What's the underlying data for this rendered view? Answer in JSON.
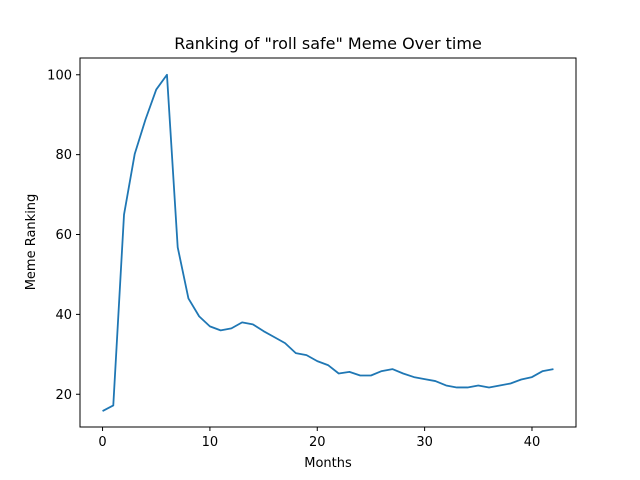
{
  "chart_data": {
    "type": "line",
    "title": "Ranking of \"roll safe\" Meme Over time",
    "xlabel": "Months",
    "ylabel": "Meme Ranking",
    "xlim": [
      -2.1,
      44.1
    ],
    "ylim": [
      11.8,
      104.2
    ],
    "xticks": [
      0,
      10,
      20,
      30,
      40
    ],
    "yticks": [
      20,
      40,
      60,
      80,
      100
    ],
    "grid": false,
    "series": [
      {
        "color": "#1f77b4",
        "x": [
          0,
          1,
          2,
          3,
          4,
          5,
          6,
          7,
          8,
          9,
          10,
          11,
          12,
          13,
          14,
          15,
          16,
          17,
          18,
          19,
          20,
          21,
          22,
          23,
          24,
          25,
          26,
          27,
          28,
          29,
          30,
          31,
          32,
          33,
          34,
          35,
          36,
          37,
          38,
          39,
          40,
          41,
          42
        ],
        "y": [
          15.8,
          17.2,
          65,
          80.2,
          88.8,
          96.3,
          100,
          56.8,
          44,
          39.5,
          37,
          36,
          36.5,
          38,
          37.5,
          35.8,
          34.3,
          32.8,
          30.3,
          29.8,
          28.3,
          27.3,
          25.2,
          25.6,
          24.7,
          24.7,
          25.8,
          26.3,
          25.2,
          24.3,
          23.8,
          23.3,
          22.2,
          21.7,
          21.7,
          22.2,
          21.7,
          22.2,
          22.7,
          23.7,
          24.3,
          25.8,
          26.3
        ]
      }
    ]
  }
}
